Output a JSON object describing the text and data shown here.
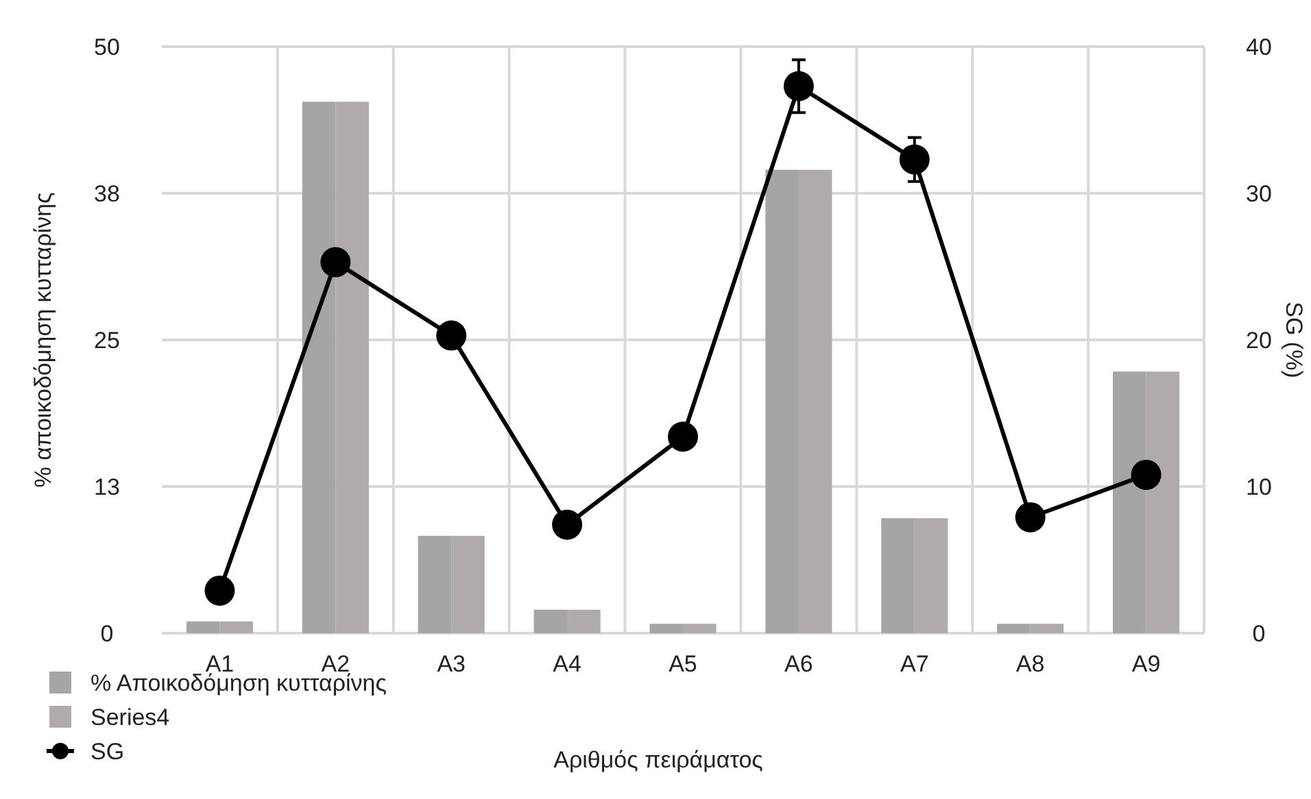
{
  "chart_data": {
    "type": "bar",
    "categories": [
      "A1",
      "A2",
      "A3",
      "A4",
      "A5",
      "A6",
      "A7",
      "A8",
      "A9"
    ],
    "series": [
      {
        "name": "% Αποικοδόμηση κυτταρίνης",
        "color": "#a5a5a5",
        "values": [
          1.0,
          45.3,
          8.3,
          2.0,
          0.8,
          39.5,
          9.8,
          0.8,
          22.3
        ]
      },
      {
        "name": "Series4",
        "color": "#afabab",
        "values": [
          1.0,
          45.3,
          8.3,
          2.0,
          0.8,
          39.5,
          9.8,
          0.8,
          22.3
        ]
      },
      {
        "name": "SG",
        "type": "line",
        "axis": "y2",
        "color": "#000000",
        "marker": "circle",
        "values": [
          2.9,
          25.3,
          20.3,
          7.4,
          13.4,
          37.3,
          32.3,
          7.9,
          10.8
        ],
        "errors": [
          null,
          0.6,
          0.3,
          null,
          null,
          1.8,
          1.5,
          null,
          null
        ]
      }
    ],
    "xlabel": "Αριθμός πειράματος",
    "ylabel": "% αποικοδόμηση κυτταρίνης",
    "y2label": "SG (%)",
    "ylim": [
      0,
      50
    ],
    "yticks": [
      0,
      {
        "value": 12.5,
        "label": "13"
      },
      25,
      {
        "value": 37.5,
        "label": "38"
      },
      50
    ],
    "y2lim": [
      0,
      40
    ],
    "y2ticks": [
      0,
      10,
      20,
      30,
      40
    ],
    "grid": true,
    "legend": "bottom left"
  }
}
